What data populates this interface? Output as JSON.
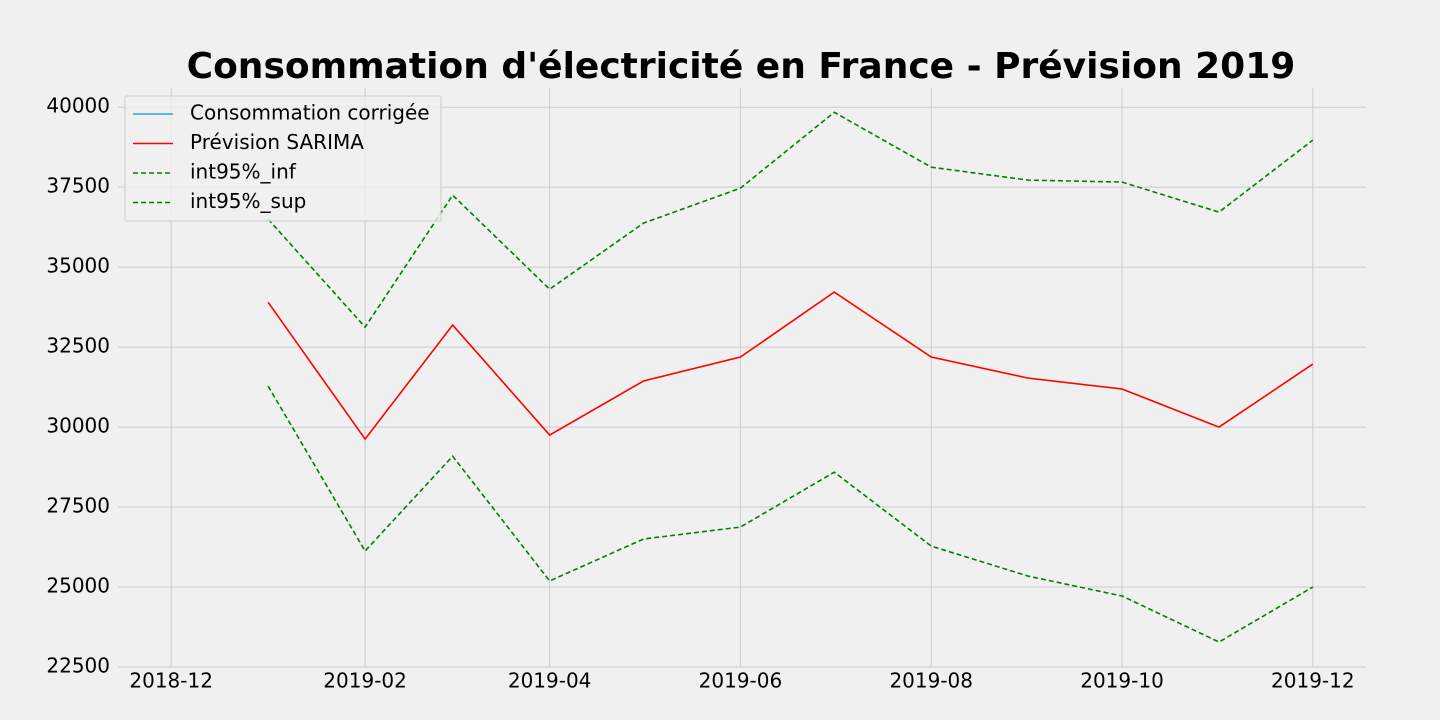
{
  "chart_data": {
    "type": "line",
    "title": "Consommation d'électricité en France - Prévision 2019",
    "x": [
      "2019-01",
      "2019-02",
      "2019-03",
      "2019-04",
      "2019-05",
      "2019-06",
      "2019-07",
      "2019-08",
      "2019-09",
      "2019-10",
      "2019-11",
      "2019-12"
    ],
    "series": [
      {
        "name": "Consommation corrigée",
        "color": "#30a2da",
        "linestyle": "solid",
        "values": [
          null,
          null,
          null,
          null,
          null,
          null,
          null,
          null,
          null,
          null,
          null,
          null
        ]
      },
      {
        "name": "Prévision SARIMA",
        "color": "#ff0000",
        "linestyle": "solid",
        "values": [
          33900,
          29625,
          33190,
          29750,
          31440,
          32190,
          34220,
          32190,
          31530,
          31190,
          30000,
          31970
        ]
      },
      {
        "name": "int95%_inf",
        "color": "#008000",
        "linestyle": "dashed",
        "values": [
          31280,
          26125,
          29090,
          25190,
          26500,
          26875,
          28590,
          26280,
          25340,
          24720,
          23280,
          25000
        ]
      },
      {
        "name": "int95%_sup",
        "color": "#008000",
        "linestyle": "dashed",
        "values": [
          36500,
          33125,
          37250,
          34310,
          36375,
          37470,
          39840,
          38125,
          37720,
          37660,
          36720,
          38970
        ]
      }
    ],
    "xlim": [
      "2018-11-14",
      "2019-12-18"
    ],
    "xticks": [
      "2018-12",
      "2019-02",
      "2019-04",
      "2019-06",
      "2019-08",
      "2019-10",
      "2019-12"
    ],
    "ylim": [
      22500,
      40600
    ],
    "yticks": [
      22500,
      25000,
      27500,
      30000,
      32500,
      35000,
      37500,
      40000
    ],
    "grid": true,
    "legend": "upper left"
  }
}
